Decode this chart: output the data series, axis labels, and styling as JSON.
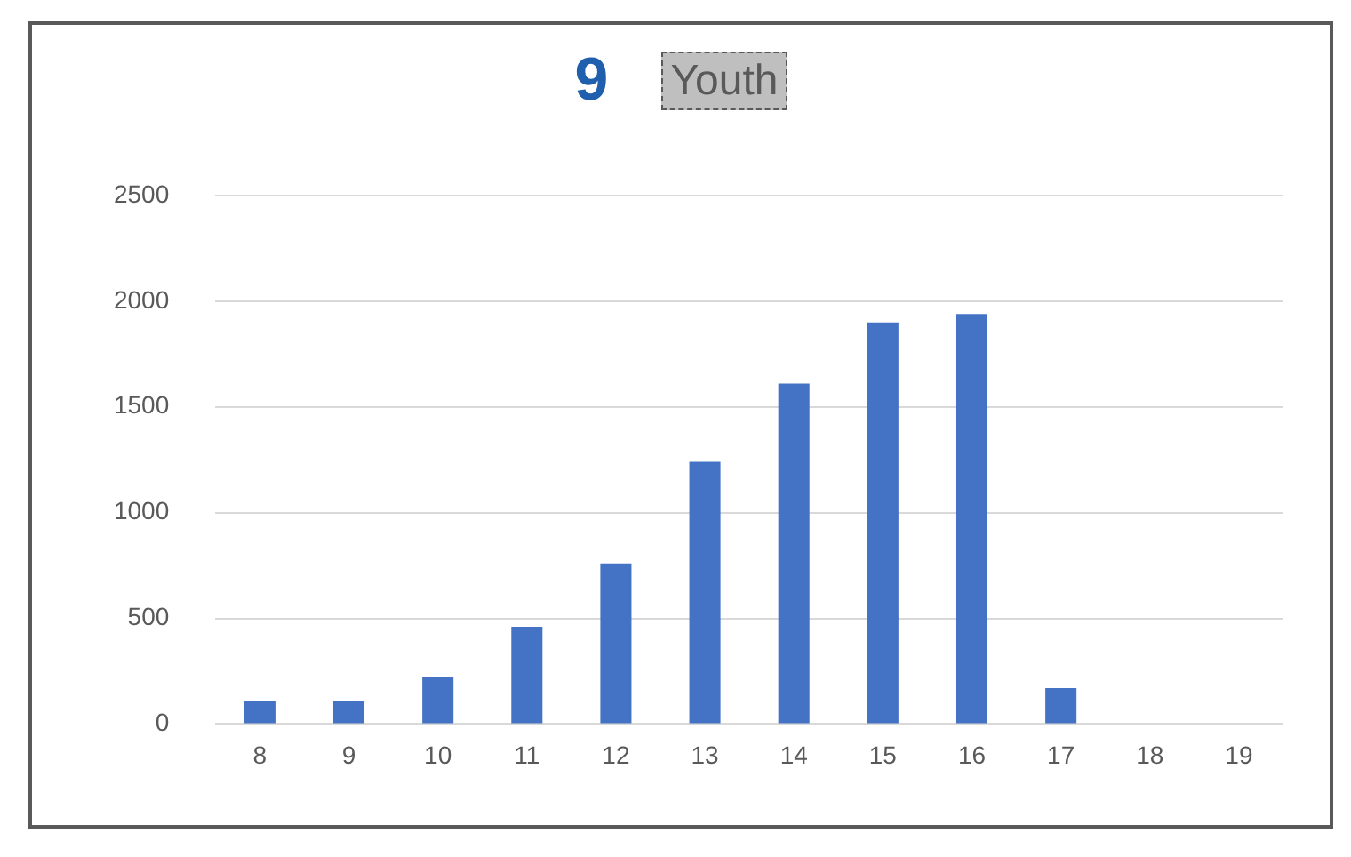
{
  "chart_data": {
    "type": "bar",
    "title": "Youth",
    "annotations": [
      "9"
    ],
    "categories": [
      "8",
      "9",
      "10",
      "11",
      "12",
      "13",
      "14",
      "15",
      "16",
      "17",
      "18",
      "19"
    ],
    "values": [
      110,
      110,
      220,
      460,
      760,
      1240,
      1610,
      1900,
      1940,
      170,
      0,
      0
    ],
    "color": "#4472c4",
    "ylim": [
      0,
      2500
    ],
    "yticks": [
      0,
      500,
      1000,
      1500,
      2000,
      2500
    ],
    "grid": "y",
    "legend": false
  }
}
